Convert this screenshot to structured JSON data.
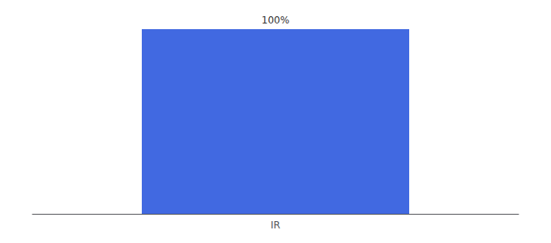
{
  "chart_data": {
    "type": "bar",
    "categories": [
      "IR"
    ],
    "values": [
      100
    ],
    "color": "#4169e1",
    "ylim": [
      0,
      100
    ],
    "grid": false,
    "data_labels": true,
    "value_labels": [
      "100%"
    ],
    "tick_labels": "x"
  }
}
